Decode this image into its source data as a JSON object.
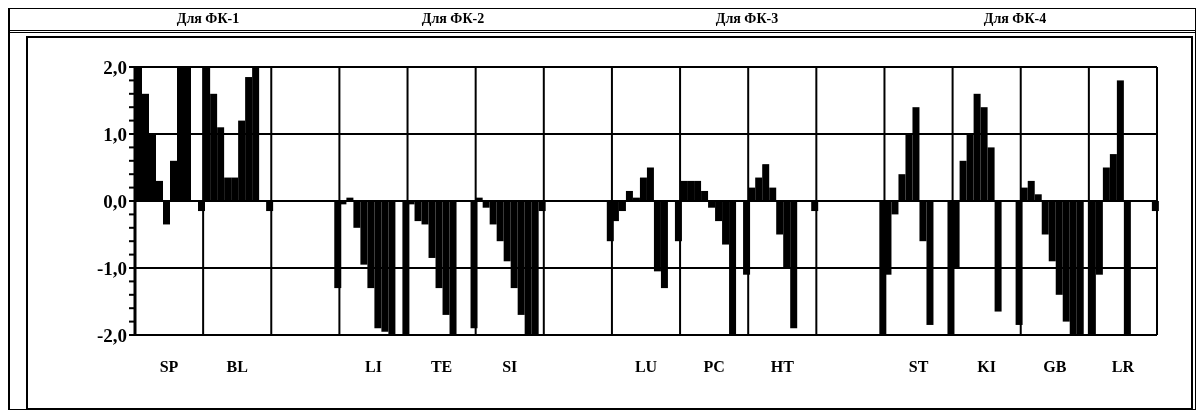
{
  "chart_data": {
    "type": "bar",
    "annotations": [
      "Для ФК-1",
      "Для ФК-2",
      "Для ФК-3",
      "Для ФК-4"
    ],
    "categories": [
      "SP",
      "BL",
      null,
      "LI",
      "TE",
      "SI",
      null,
      "LU",
      "PC",
      "HT",
      null,
      "ST",
      "KI",
      "GB",
      "LR"
    ],
    "series": [
      {
        "color": "#000000",
        "values": [
          2.0,
          2.0,
          null,
          -0.05,
          -0.05,
          0.05,
          null,
          -0.3,
          0.3,
          0.2,
          null,
          -1.1,
          -1.0,
          0.2,
          -2.0
        ]
      },
      {
        "color": "#000000",
        "values": [
          1.6,
          1.6,
          null,
          0.05,
          -0.3,
          -0.1,
          null,
          -0.15,
          0.3,
          0.35,
          null,
          -0.2,
          0.6,
          0.3,
          -1.1
        ]
      },
      {
        "color": "#000000",
        "values": [
          1.0,
          1.1,
          null,
          -0.4,
          -0.35,
          -0.35,
          null,
          0.15,
          0.3,
          0.55,
          null,
          0.4,
          1.0,
          0.1,
          0.5
        ]
      },
      {
        "color": "#000000",
        "values": [
          0.3,
          0.35,
          null,
          -0.95,
          -0.85,
          -0.6,
          null,
          0.05,
          0.15,
          0.2,
          null,
          1.0,
          1.6,
          -0.5,
          0.7
        ]
      },
      {
        "color": "#000000",
        "values": [
          -0.35,
          0.35,
          null,
          -1.3,
          -1.3,
          -0.9,
          null,
          0.35,
          -0.1,
          -0.5,
          null,
          1.4,
          1.4,
          -0.9,
          1.8
        ]
      },
      {
        "color": "#000000",
        "values": [
          0.6,
          1.2,
          null,
          -1.9,
          -1.7,
          -1.3,
          null,
          0.5,
          -0.3,
          -1.0,
          null,
          -0.6,
          0.8,
          -1.4,
          -2.0
        ]
      },
      {
        "color": "#000000",
        "values": [
          2.0,
          1.85,
          null,
          -1.95,
          -2.0,
          -1.7,
          null,
          -1.05,
          -0.65,
          -1.9,
          null,
          -1.85,
          -1.65,
          -1.8,
          null
        ]
      },
      {
        "color": "#000000",
        "values": [
          2.0,
          2.0,
          null,
          -2.0,
          null,
          -2.0,
          null,
          -1.3,
          -2.0,
          null,
          null,
          null,
          null,
          -2.0,
          null
        ]
      },
      {
        "color": "#000000",
        "values": [
          null,
          null,
          null,
          null,
          null,
          -2.0,
          null,
          null,
          null,
          null,
          null,
          null,
          null,
          -2.0,
          null
        ]
      },
      {
        "color": "#000000",
        "values": [
          -0.15,
          -0.15,
          -1.3,
          -2.0,
          -1.9,
          -0.15,
          -0.6,
          -0.6,
          -1.1,
          -0.15,
          -2.0,
          -2.0,
          -1.85,
          null,
          -0.15
        ]
      }
    ],
    "ylim": [
      -2,
      2
    ],
    "yticks": [
      {
        "value": -2,
        "label": "-2,0"
      },
      {
        "value": -1.8,
        "label": null
      },
      {
        "value": -1.6,
        "label": null
      },
      {
        "value": -1.4,
        "label": null
      },
      {
        "value": -1.2,
        "label": null
      },
      {
        "value": -1,
        "label": "-1,0"
      },
      {
        "value": -0.8,
        "label": null
      },
      {
        "value": -0.6,
        "label": null
      },
      {
        "value": -0.4,
        "label": null
      },
      {
        "value": -0.2,
        "label": null
      },
      {
        "value": 0,
        "label": "0,0"
      },
      {
        "value": 0.2,
        "label": null
      },
      {
        "value": 0.4,
        "label": null
      },
      {
        "value": 0.6,
        "label": null
      },
      {
        "value": 0.8,
        "label": null
      },
      {
        "value": 1,
        "label": "1,0"
      },
      {
        "value": 1.2,
        "label": null
      },
      {
        "value": 1.4,
        "label": null
      },
      {
        "value": 1.6,
        "label": null
      },
      {
        "value": 1.8,
        "label": null
      },
      {
        "value": 2,
        "label": "2,0"
      }
    ],
    "grid": true
  }
}
